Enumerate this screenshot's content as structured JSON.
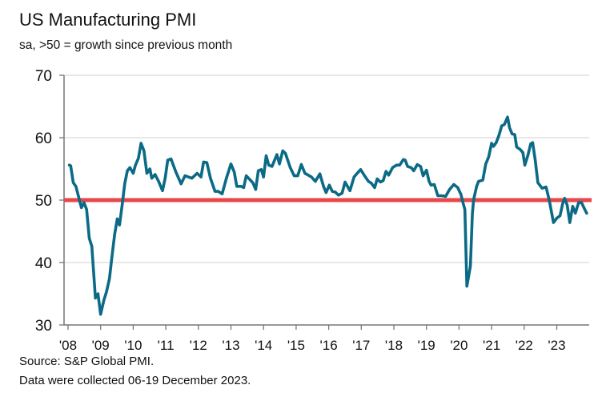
{
  "chart_data": {
    "type": "line",
    "title": "US Manufacturing PMI",
    "subtitle": "sa, >50 = growth since previous month",
    "xlabel": "",
    "ylabel": "",
    "ylim": [
      30,
      70
    ],
    "xlim": [
      2008,
      2024
    ],
    "yticks": [
      "30",
      "40",
      "50",
      "60",
      "70"
    ],
    "ytick_values": [
      30,
      40,
      50,
      60,
      70
    ],
    "xticks": [
      "'08",
      "'09",
      "'10",
      "'11",
      "'12",
      "'13",
      "'14",
      "'15",
      "'16",
      "'17",
      "'18",
      "'19",
      "'20",
      "'21",
      "'22",
      "'23"
    ],
    "grid": true,
    "reference_line": {
      "value": 50,
      "color": "#e8474a"
    },
    "series": [
      {
        "name": "US Manufacturing PMI",
        "color": "#0b6a86",
        "points": [
          [
            2008.04,
            55.6
          ],
          [
            2008.08,
            55.5
          ],
          [
            2008.16,
            52.8
          ],
          [
            2008.24,
            52.2
          ],
          [
            2008.41,
            48.8
          ],
          [
            2008.49,
            49.6
          ],
          [
            2008.57,
            48.5
          ],
          [
            2008.65,
            43.9
          ],
          [
            2008.73,
            42.6
          ],
          [
            2008.84,
            34.3
          ],
          [
            2008.92,
            35.0
          ],
          [
            2009.0,
            31.7
          ],
          [
            2009.1,
            34.0
          ],
          [
            2009.18,
            35.3
          ],
          [
            2009.27,
            37.4
          ],
          [
            2009.35,
            41.0
          ],
          [
            2009.43,
            44.5
          ],
          [
            2009.51,
            47.0
          ],
          [
            2009.58,
            46.0
          ],
          [
            2009.66,
            49.2
          ],
          [
            2009.74,
            52.6
          ],
          [
            2009.82,
            54.7
          ],
          [
            2009.9,
            55.2
          ],
          [
            2010.0,
            54.3
          ],
          [
            2010.07,
            55.6
          ],
          [
            2010.16,
            56.7
          ],
          [
            2010.24,
            59.1
          ],
          [
            2010.33,
            57.9
          ],
          [
            2010.42,
            54.3
          ],
          [
            2010.51,
            55.0
          ],
          [
            2010.57,
            53.5
          ],
          [
            2010.67,
            54.1
          ],
          [
            2010.78,
            53.0
          ],
          [
            2010.9,
            51.5
          ],
          [
            2010.98,
            53.5
          ],
          [
            2011.06,
            56.4
          ],
          [
            2011.16,
            56.6
          ],
          [
            2011.31,
            54.5
          ],
          [
            2011.47,
            52.6
          ],
          [
            2011.59,
            53.9
          ],
          [
            2011.8,
            53.5
          ],
          [
            2011.96,
            54.3
          ],
          [
            2012.08,
            53.7
          ],
          [
            2012.16,
            56.1
          ],
          [
            2012.26,
            56.0
          ],
          [
            2012.37,
            53.5
          ],
          [
            2012.51,
            51.4
          ],
          [
            2012.61,
            51.4
          ],
          [
            2012.73,
            51.0
          ],
          [
            2012.86,
            53.5
          ],
          [
            2013.0,
            55.8
          ],
          [
            2013.1,
            54.5
          ],
          [
            2013.18,
            52.2
          ],
          [
            2013.31,
            52.2
          ],
          [
            2013.39,
            52.0
          ],
          [
            2013.47,
            53.9
          ],
          [
            2013.67,
            52.8
          ],
          [
            2013.76,
            51.7
          ],
          [
            2013.84,
            54.7
          ],
          [
            2013.93,
            54.9
          ],
          [
            2014.0,
            53.7
          ],
          [
            2014.08,
            57.1
          ],
          [
            2014.16,
            55.6
          ],
          [
            2014.26,
            55.4
          ],
          [
            2014.41,
            57.3
          ],
          [
            2014.49,
            55.8
          ],
          [
            2014.59,
            57.9
          ],
          [
            2014.67,
            57.5
          ],
          [
            2014.82,
            55.2
          ],
          [
            2014.94,
            53.9
          ],
          [
            2015.05,
            53.9
          ],
          [
            2015.16,
            55.7
          ],
          [
            2015.27,
            54.3
          ],
          [
            2015.47,
            53.7
          ],
          [
            2015.59,
            53.0
          ],
          [
            2015.73,
            54.2
          ],
          [
            2015.84,
            52.2
          ],
          [
            2015.92,
            51.2
          ],
          [
            2016.02,
            52.4
          ],
          [
            2016.11,
            51.4
          ],
          [
            2016.2,
            51.3
          ],
          [
            2016.3,
            50.8
          ],
          [
            2016.41,
            51.1
          ],
          [
            2016.5,
            52.9
          ],
          [
            2016.65,
            51.5
          ],
          [
            2016.78,
            53.7
          ],
          [
            2016.86,
            54.2
          ],
          [
            2016.98,
            54.9
          ],
          [
            2017.1,
            53.9
          ],
          [
            2017.22,
            53.0
          ],
          [
            2017.31,
            52.7
          ],
          [
            2017.41,
            52.0
          ],
          [
            2017.49,
            53.4
          ],
          [
            2017.59,
            52.9
          ],
          [
            2017.67,
            53.1
          ],
          [
            2017.76,
            54.6
          ],
          [
            2017.84,
            54.0
          ],
          [
            2017.96,
            55.2
          ],
          [
            2018.08,
            55.6
          ],
          [
            2018.18,
            55.6
          ],
          [
            2018.29,
            56.5
          ],
          [
            2018.35,
            56.4
          ],
          [
            2018.42,
            55.4
          ],
          [
            2018.53,
            55.2
          ],
          [
            2018.61,
            54.7
          ],
          [
            2018.72,
            55.7
          ],
          [
            2018.82,
            55.4
          ],
          [
            2018.9,
            53.9
          ],
          [
            2019.0,
            54.8
          ],
          [
            2019.08,
            53.0
          ],
          [
            2019.14,
            52.4
          ],
          [
            2019.24,
            52.5
          ],
          [
            2019.35,
            50.7
          ],
          [
            2019.47,
            50.7
          ],
          [
            2019.59,
            50.6
          ],
          [
            2019.71,
            51.7
          ],
          [
            2019.84,
            52.5
          ],
          [
            2019.96,
            52.0
          ],
          [
            2020.06,
            50.9
          ],
          [
            2020.12,
            49.6
          ],
          [
            2020.18,
            48.5
          ],
          [
            2020.24,
            36.2
          ],
          [
            2020.35,
            39.4
          ],
          [
            2020.41,
            47.9
          ],
          [
            2020.45,
            50.1
          ],
          [
            2020.54,
            52.2
          ],
          [
            2020.6,
            53.0
          ],
          [
            2020.73,
            53.2
          ],
          [
            2020.82,
            55.8
          ],
          [
            2020.91,
            56.9
          ],
          [
            2021.0,
            59.1
          ],
          [
            2021.06,
            58.6
          ],
          [
            2021.14,
            59.2
          ],
          [
            2021.22,
            60.3
          ],
          [
            2021.31,
            61.9
          ],
          [
            2021.39,
            62.1
          ],
          [
            2021.49,
            63.3
          ],
          [
            2021.55,
            61.6
          ],
          [
            2021.63,
            60.6
          ],
          [
            2021.71,
            60.5
          ],
          [
            2021.77,
            58.5
          ],
          [
            2021.88,
            58.1
          ],
          [
            2021.96,
            57.6
          ],
          [
            2022.02,
            55.6
          ],
          [
            2022.12,
            57.3
          ],
          [
            2022.2,
            59.0
          ],
          [
            2022.26,
            59.2
          ],
          [
            2022.34,
            56.4
          ],
          [
            2022.42,
            52.8
          ],
          [
            2022.55,
            51.9
          ],
          [
            2022.67,
            52.1
          ],
          [
            2022.77,
            50.0
          ],
          [
            2022.9,
            46.4
          ],
          [
            2023.0,
            47.1
          ],
          [
            2023.1,
            47.5
          ],
          [
            2023.18,
            49.4
          ],
          [
            2023.24,
            50.3
          ],
          [
            2023.32,
            49.2
          ],
          [
            2023.4,
            46.4
          ],
          [
            2023.49,
            49.0
          ],
          [
            2023.57,
            47.9
          ],
          [
            2023.67,
            49.6
          ],
          [
            2023.76,
            49.6
          ],
          [
            2023.87,
            48.4
          ],
          [
            2023.92,
            47.9
          ]
        ]
      }
    ]
  },
  "footer": {
    "source": "Source: S&P Global PMI.",
    "collected": "Data were collected 06-19 December 2023."
  }
}
